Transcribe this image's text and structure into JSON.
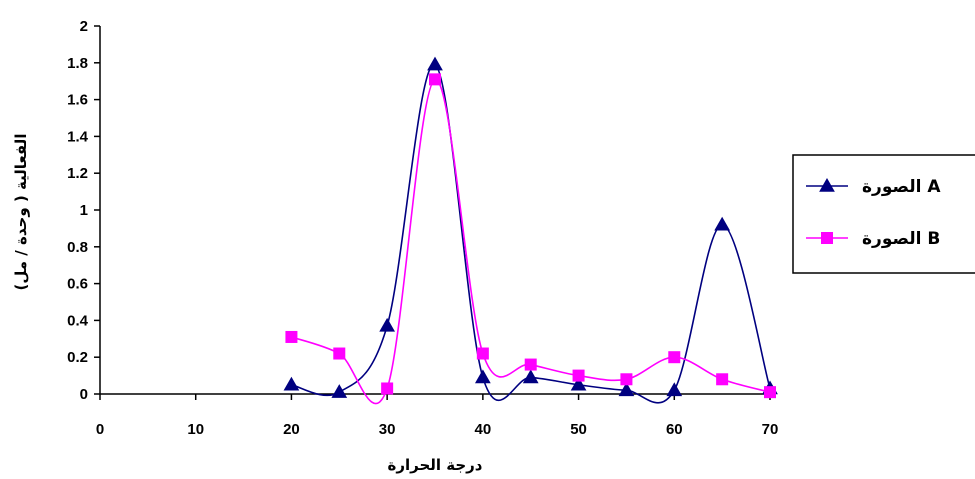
{
  "chart_data": {
    "type": "line",
    "title": "",
    "xlabel": "درجة الحرارة",
    "ylabel": "الفعالية ( وحدة / مل)",
    "xlim": [
      0,
      70
    ],
    "ylim": [
      0,
      2
    ],
    "x_ticks": [
      "0",
      "10",
      "20",
      "30",
      "40",
      "50",
      "60",
      "70"
    ],
    "y_ticks": [
      "0",
      "0.2",
      "0.4",
      "0.6",
      "0.8",
      "1",
      "1.2",
      "1.4",
      "1.6",
      "1.8",
      "2"
    ],
    "x": [
      20,
      25,
      30,
      35,
      40,
      45,
      50,
      55,
      60,
      65,
      70
    ],
    "series": [
      {
        "name": "الصورة A",
        "marker": "triangle",
        "color": "#000080",
        "values": [
          0.05,
          0.01,
          0.37,
          1.79,
          0.09,
          0.09,
          0.05,
          0.02,
          0.02,
          0.92,
          0.03
        ]
      },
      {
        "name": "الصورة B",
        "marker": "square",
        "color": "#FF00FF",
        "values": [
          0.31,
          0.22,
          0.03,
          1.71,
          0.22,
          0.16,
          0.1,
          0.08,
          0.2,
          0.08,
          0.01
        ]
      }
    ],
    "grid": false,
    "legend_position": "right"
  }
}
